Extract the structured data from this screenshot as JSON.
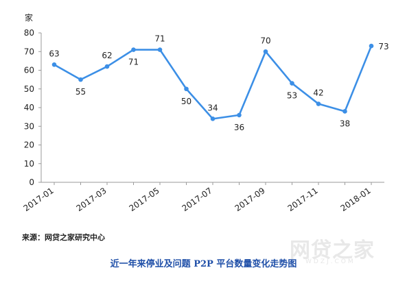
{
  "chart_data": {
    "type": "line",
    "title": "近一年来停业及问题 P2P 平台数量变化走势图",
    "ylabel": "家",
    "xlabel": "",
    "ylim": [
      0,
      80
    ],
    "yticks": [
      0,
      10,
      20,
      30,
      40,
      50,
      60,
      70,
      80
    ],
    "x_tick_labels": [
      "2017-01",
      "2017-03",
      "2017-05",
      "2017-07",
      "2017-09",
      "2017-11",
      "2018-01"
    ],
    "x": [
      "2017-01",
      "2017-02",
      "2017-03",
      "2017-04",
      "2017-05",
      "2017-06",
      "2017-07",
      "2017-08",
      "2017-09",
      "2017-10",
      "2017-11",
      "2017-12",
      "2018-01"
    ],
    "values": [
      63,
      55,
      62,
      71,
      71,
      50,
      34,
      36,
      70,
      53,
      42,
      38,
      73
    ],
    "data_labels": [
      "63",
      "55",
      "62",
      "71",
      "71",
      "50",
      "34",
      "36",
      "70",
      "53",
      "42",
      "38",
      "73"
    ],
    "line_color": "#3c8fe6",
    "grid": false
  },
  "source": "来源：网贷之家研究中心",
  "watermark": "网贷之家",
  "watermark_sub": "WDZJ.COM"
}
